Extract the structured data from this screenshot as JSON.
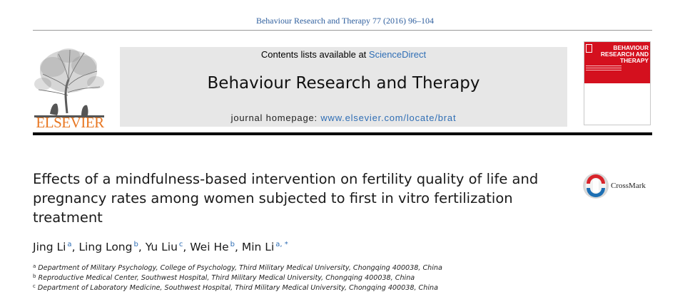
{
  "citation": "Behaviour Research and Therapy 77 (2016) 96–104",
  "banner": {
    "publisher": "ELSEVIER",
    "contents_prefix": "Contents lists available at ",
    "contents_link": "ScienceDirect",
    "journal_name": "Behaviour Research and Therapy",
    "homepage_prefix": "journal homepage: ",
    "homepage_url": "www.elsevier.com/locate/brat",
    "cover_title": "BEHAVIOUR RESEARCH AND THERAPY"
  },
  "article": {
    "title": "Effects of a mindfulness-based intervention on fertility quality of life and pregnancy rates among women subjected to first in vitro fertilization treatment",
    "crossmark_label": "CrossMark",
    "authors": [
      {
        "name": "Jing Li",
        "sup": "a"
      },
      {
        "name": "Ling Long",
        "sup": "b"
      },
      {
        "name": "Yu Liu",
        "sup": "c"
      },
      {
        "name": "Wei He",
        "sup": "b"
      },
      {
        "name": "Min Li",
        "sup": "a, *"
      }
    ],
    "affiliations": [
      {
        "letter": "a",
        "text": "Department of Military Psychology, College of Psychology, Third Military Medical University, Chongqing 400038, China"
      },
      {
        "letter": "b",
        "text": "Reproductive Medical Center, Southwest Hospital, Third Military Medical University, Chongqing 400038, China"
      },
      {
        "letter": "c",
        "text": "Department of Laboratory Medicine, Southwest Hospital, Third Military Medical University, Chongqing 400038, China"
      }
    ]
  },
  "colors": {
    "link": "#2f6eb5",
    "publisher_orange": "#e87722",
    "cover_red": "#d4101e",
    "banner_grey": "#e7e7e7"
  }
}
